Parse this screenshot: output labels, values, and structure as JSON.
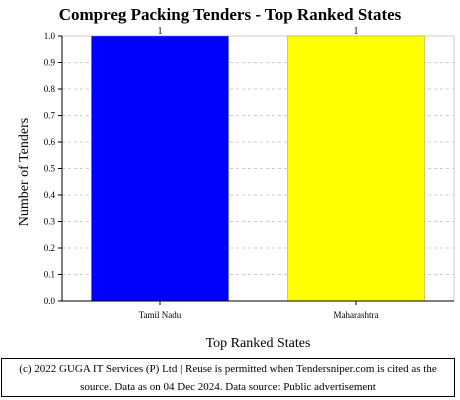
{
  "chart_data": {
    "type": "bar",
    "title": "Compreg Packing Tenders - Top Ranked States",
    "xlabel": "Top Ranked States",
    "ylabel": "Number of Tenders",
    "categories": [
      "Tamil Nadu",
      "Maharashtra"
    ],
    "values": [
      1,
      1
    ],
    "data_labels": [
      "1",
      "1"
    ],
    "bar_colors": [
      "#0000ff",
      "#ffff00"
    ],
    "ylim": [
      0,
      1.0
    ],
    "yticks": [
      "0.0",
      "0.1",
      "0.2",
      "0.3",
      "0.4",
      "0.5",
      "0.6",
      "0.7",
      "0.8",
      "0.9",
      "1.0"
    ],
    "grid": true,
    "legend": "none"
  },
  "footer": {
    "line1": "(c) 2022 GUGA IT Services (P) Ltd | Reuse is permitted when Tendersniper.com is cited as the",
    "line2": "source. Data as on 04 Dec 2024. Data source: Public advertisement"
  }
}
